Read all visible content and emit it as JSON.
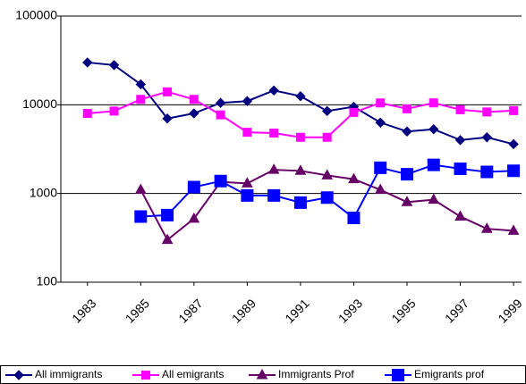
{
  "chart_data": {
    "type": "line",
    "x": [
      1983,
      1984,
      1985,
      1986,
      1987,
      1988,
      1989,
      1990,
      1991,
      1992,
      1993,
      1994,
      1995,
      1996,
      1997,
      1998,
      1999
    ],
    "xlim": [
      1982,
      1999.3
    ],
    "xticks": [
      1983,
      1985,
      1987,
      1989,
      1991,
      1993,
      1995,
      1997,
      1999
    ],
    "ylim": [
      100,
      100000
    ],
    "yticks": [
      100,
      1000,
      10000,
      100000
    ],
    "log_y": true,
    "grid": true,
    "legend": "bottom",
    "series": [
      {
        "name": "All immigrants",
        "color": "#000080",
        "marker": "diamond",
        "values": [
          30000,
          28000,
          17000,
          7000,
          8000,
          10500,
          11000,
          14500,
          12500,
          8500,
          9500,
          6300,
          5000,
          5300,
          4000,
          4300,
          3600
        ]
      },
      {
        "name": "All emigrants",
        "color": "#ff00ff",
        "marker": "square",
        "values": [
          8000,
          8500,
          11500,
          14000,
          11500,
          7700,
          4900,
          4800,
          4300,
          4300,
          8200,
          10500,
          9000,
          10500,
          8800,
          8300,
          8600
        ]
      },
      {
        "name": "Immigrants Prof",
        "color": "#660066",
        "marker": "triangle",
        "values": [
          null,
          null,
          1100,
          300,
          520,
          1350,
          1300,
          1850,
          1800,
          1600,
          1450,
          1100,
          800,
          850,
          550,
          400,
          380
        ]
      },
      {
        "name": "Emigrants prof",
        "color": "#0000ff",
        "marker": "bigsquare",
        "values": [
          null,
          null,
          550,
          570,
          1180,
          1380,
          950,
          950,
          790,
          900,
          530,
          1950,
          1650,
          2100,
          1900,
          1750,
          1800
        ]
      }
    ]
  }
}
